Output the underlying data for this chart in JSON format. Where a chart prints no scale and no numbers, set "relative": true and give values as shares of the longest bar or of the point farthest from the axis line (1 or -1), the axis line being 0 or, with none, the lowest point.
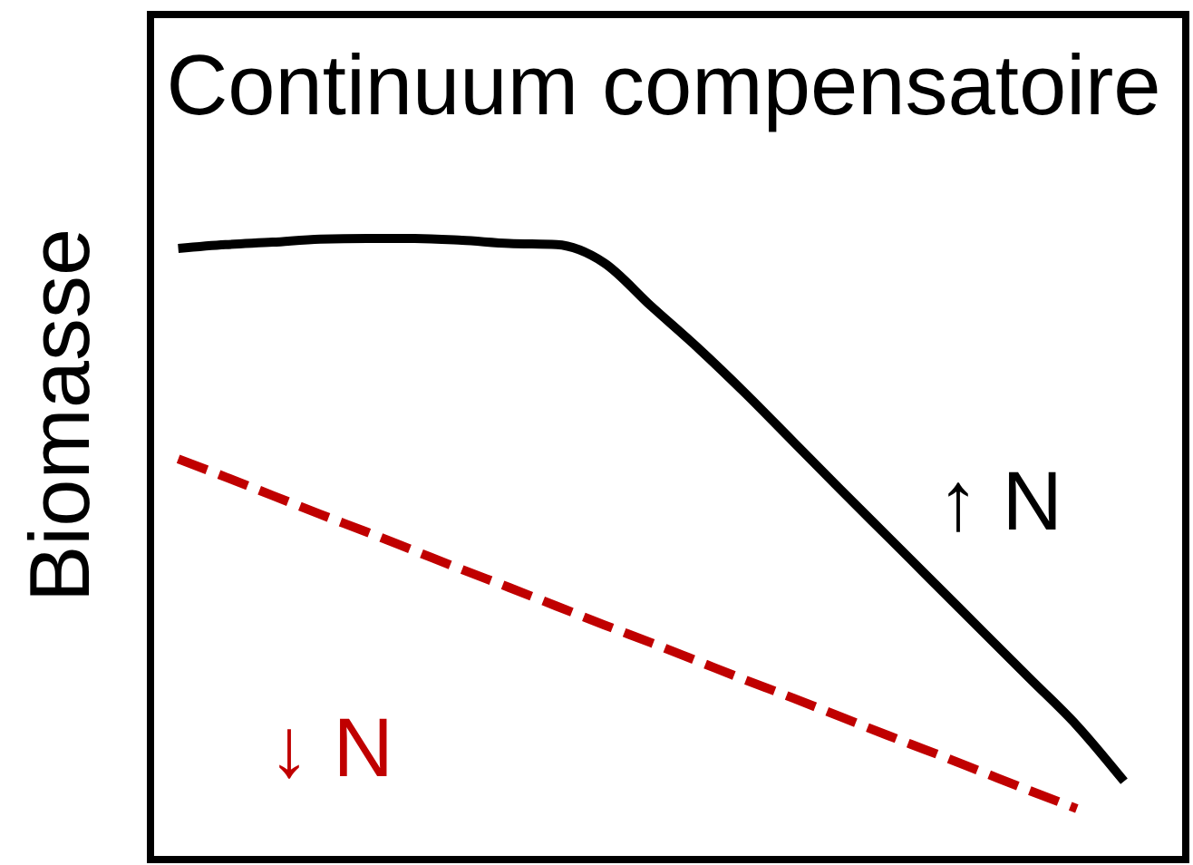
{
  "chart_data": {
    "type": "line",
    "title": "Continuum compensatoire",
    "ylabel": "Biomasse",
    "relative": true,
    "categories": [
      null,
      null,
      null,
      null,
      null,
      null,
      null,
      null,
      null,
      null,
      null,
      null,
      null,
      null,
      null,
      null,
      null,
      null,
      null,
      null,
      null
    ],
    "series": [
      {
        "name": "↑ N",
        "color": "#000000",
        "line_style": "solid",
        "values": [
          0.984,
          0.99,
          0.994,
          0.999,
          1.0,
          1.0,
          0.997,
          0.992,
          0.99,
          0.961,
          0.891,
          0.823,
          0.75,
          0.673,
          0.596,
          0.52,
          0.444,
          0.368,
          0.292,
          0.216,
          0.126
        ]
      },
      {
        "name": "↓ N",
        "color": "#c00000",
        "line_style": "dashed",
        "values": [
          0.645,
          0.616,
          0.586,
          0.556,
          0.527,
          0.497,
          0.467,
          0.438,
          0.408,
          0.378,
          0.349,
          0.319,
          0.289,
          0.26,
          0.23,
          0.2,
          0.171,
          0.141,
          0.111,
          0.082,
          null
        ]
      }
    ]
  }
}
